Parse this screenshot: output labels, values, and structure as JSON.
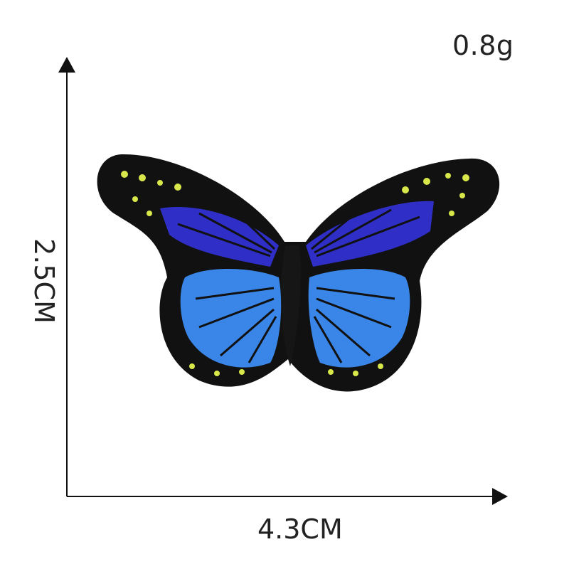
{
  "dimensions": {
    "weight": "0.8g",
    "width": "4.3CM",
    "height": "2.5CM"
  },
  "product": {
    "icon": "butterfly-patch",
    "colors": {
      "border": "#111111",
      "upper_wing": "#2f2fc8",
      "lower_wing": "#3a86e8",
      "accent": "#d8e84a"
    }
  }
}
